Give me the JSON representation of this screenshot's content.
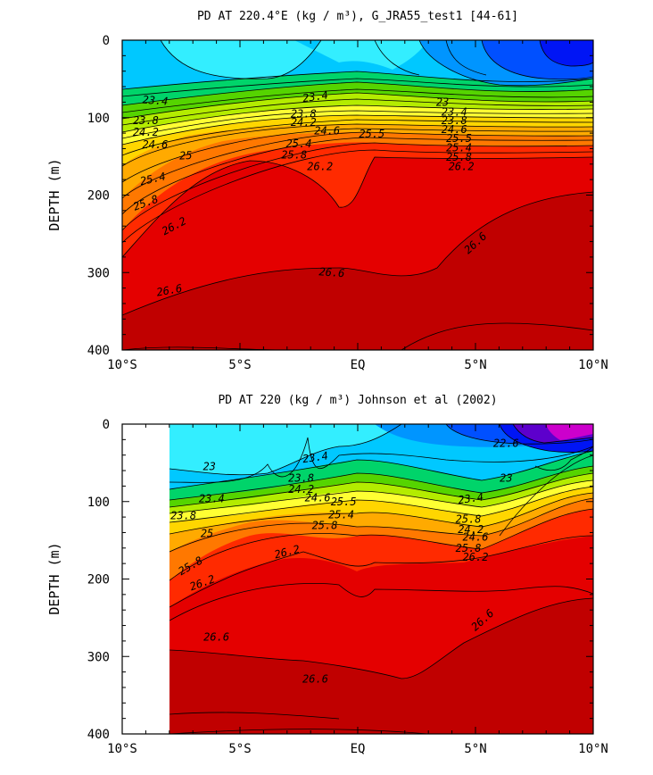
{
  "chart_data": [
    {
      "type": "heatmap",
      "title": "PD AT 220.4°E (kg / m³), G_JRA55_test1 [44-61]",
      "ylabel": "DEPTH (m)",
      "xlabel": "",
      "x_ticks": [
        "10°S",
        "5°S",
        "EQ",
        "5°N",
        "10°N"
      ],
      "x_tick_values": [
        -10,
        -5,
        0,
        5,
        10
      ],
      "y_ticks": [
        "0",
        "100",
        "200",
        "300",
        "400"
      ],
      "y_tick_values": [
        0,
        100,
        200,
        300,
        400
      ],
      "xlim": [
        -10,
        10
      ],
      "ylim": [
        400,
        0
      ],
      "data_xlim": [
        -10,
        10
      ],
      "contour_interval": 0.2,
      "colormap": [
        "#5d00cc",
        "#0015f5",
        "#0050ff",
        "#0095ff",
        "#00c8ff",
        "#33eeff",
        "#00d46a",
        "#55d400",
        "#b4ec00",
        "#ffff33",
        "#ffd600",
        "#ffaa00",
        "#ff7800",
        "#ff2a00",
        "#e40000",
        "#c00000"
      ],
      "contour_labels": [
        {
          "text": "23.4",
          "x": -8.6,
          "y": 78,
          "rot": 4
        },
        {
          "text": "23.4",
          "x": -1.8,
          "y": 73,
          "rot": -8
        },
        {
          "text": "23",
          "x": 3.6,
          "y": 80,
          "rot": 0
        },
        {
          "text": "23.8",
          "x": -9.0,
          "y": 104,
          "rot": 0
        },
        {
          "text": "24.2",
          "x": -9.0,
          "y": 119,
          "rot": 0
        },
        {
          "text": "24.6",
          "x": -8.6,
          "y": 135,
          "rot": 0
        },
        {
          "text": "25",
          "x": -7.3,
          "y": 149,
          "rot": -3
        },
        {
          "text": "25.4",
          "x": -8.7,
          "y": 179,
          "rot": -12
        },
        {
          "text": "25.8",
          "x": -9.0,
          "y": 210,
          "rot": -20
        },
        {
          "text": "26.2",
          "x": -7.8,
          "y": 240,
          "rot": -28
        },
        {
          "text": "26.6",
          "x": -8.0,
          "y": 323,
          "rot": -10
        },
        {
          "text": "26.6",
          "x": -1.1,
          "y": 300,
          "rot": 4
        },
        {
          "text": "26.6",
          "x": 5.0,
          "y": 262,
          "rot": -42
        },
        {
          "text": "23.8",
          "x": -2.3,
          "y": 95,
          "rot": 0
        },
        {
          "text": "24.2",
          "x": -2.3,
          "y": 106,
          "rot": 0
        },
        {
          "text": "24.6",
          "x": -1.3,
          "y": 117,
          "rot": 0
        },
        {
          "text": "25.5",
          "x": 0.6,
          "y": 121,
          "rot": 0
        },
        {
          "text": "25.4",
          "x": -2.5,
          "y": 134,
          "rot": 0
        },
        {
          "text": "25.8",
          "x": -2.7,
          "y": 148,
          "rot": 0
        },
        {
          "text": "26.2",
          "x": -1.6,
          "y": 163,
          "rot": 0
        },
        {
          "text": "23.4",
          "x": 4.1,
          "y": 93,
          "rot": 0
        },
        {
          "text": "23.8",
          "x": 4.1,
          "y": 104,
          "rot": 0
        },
        {
          "text": "24.6",
          "x": 4.1,
          "y": 115,
          "rot": 0
        },
        {
          "text": "25.5",
          "x": 4.3,
          "y": 127,
          "rot": 0
        },
        {
          "text": "25.4",
          "x": 4.3,
          "y": 139,
          "rot": 0
        },
        {
          "text": "25.8",
          "x": 4.3,
          "y": 151,
          "rot": 0
        },
        {
          "text": "26.2",
          "x": 4.4,
          "y": 163,
          "rot": 0
        }
      ]
    },
    {
      "type": "heatmap",
      "title": "PD AT 220 (kg / m³) Johnson et al (2002)",
      "ylabel": "DEPTH (m)",
      "xlabel": "",
      "x_ticks": [
        "10°S",
        "5°S",
        "EQ",
        "5°N",
        "10°N"
      ],
      "x_tick_values": [
        -10,
        -5,
        0,
        5,
        10
      ],
      "y_ticks": [
        "0",
        "100",
        "200",
        "300",
        "400"
      ],
      "y_tick_values": [
        0,
        100,
        200,
        300,
        400
      ],
      "xlim": [
        -10,
        10
      ],
      "ylim": [
        400,
        0
      ],
      "data_xlim": [
        -8,
        10
      ],
      "contour_interval": 0.2,
      "colormap": [
        "#5d00cc",
        "#0015f5",
        "#0050ff",
        "#0095ff",
        "#00c8ff",
        "#33eeff",
        "#00d46a",
        "#55d400",
        "#b4ec00",
        "#ffff33",
        "#ffd600",
        "#ffaa00",
        "#ff7800",
        "#ff2a00",
        "#e40000",
        "#c00000"
      ],
      "contour_labels": [
        {
          "text": "23",
          "x": -6.3,
          "y": 55,
          "rot": 0
        },
        {
          "text": "23.4",
          "x": -1.8,
          "y": 43,
          "rot": -8
        },
        {
          "text": "22.6",
          "x": 6.3,
          "y": 25,
          "rot": 0
        },
        {
          "text": "23",
          "x": 6.3,
          "y": 70,
          "rot": 0
        },
        {
          "text": "23.4",
          "x": -6.2,
          "y": 96,
          "rot": 0
        },
        {
          "text": "23.4",
          "x": 4.8,
          "y": 96,
          "rot": -8
        },
        {
          "text": "23.8",
          "x": -7.4,
          "y": 118,
          "rot": 0
        },
        {
          "text": "23.8",
          "x": -2.4,
          "y": 70,
          "rot": 0
        },
        {
          "text": "24.2",
          "x": -2.4,
          "y": 84,
          "rot": 0
        },
        {
          "text": "24.6",
          "x": -1.7,
          "y": 95,
          "rot": 0
        },
        {
          "text": "25.5",
          "x": -0.6,
          "y": 100,
          "rot": 0
        },
        {
          "text": "25.4",
          "x": -0.7,
          "y": 117,
          "rot": 0
        },
        {
          "text": "25.8",
          "x": -1.4,
          "y": 131,
          "rot": 0
        },
        {
          "text": "25",
          "x": -6.4,
          "y": 141,
          "rot": 0
        },
        {
          "text": "26.2",
          "x": -3.0,
          "y": 165,
          "rot": -14
        },
        {
          "text": "25.8",
          "x": 4.7,
          "y": 123,
          "rot": 0
        },
        {
          "text": "24.2",
          "x": 4.8,
          "y": 136,
          "rot": 0
        },
        {
          "text": "24.6",
          "x": 5.0,
          "y": 146,
          "rot": 0
        },
        {
          "text": "25.8",
          "x": 4.7,
          "y": 160,
          "rot": 0
        },
        {
          "text": "26.2",
          "x": 5.0,
          "y": 172,
          "rot": 0
        },
        {
          "text": "25.8",
          "x": -7.1,
          "y": 183,
          "rot": -30
        },
        {
          "text": "26.2",
          "x": -6.6,
          "y": 205,
          "rot": -20
        },
        {
          "text": "26.6",
          "x": -6.0,
          "y": 275,
          "rot": 0
        },
        {
          "text": "26.6",
          "x": 5.3,
          "y": 253,
          "rot": -42
        },
        {
          "text": "26.6",
          "x": -1.8,
          "y": 329,
          "rot": 0
        }
      ]
    }
  ]
}
